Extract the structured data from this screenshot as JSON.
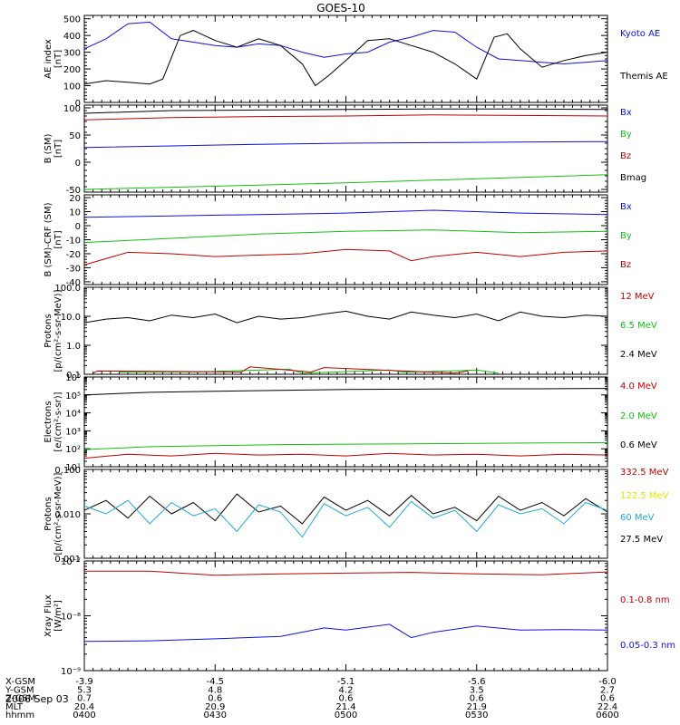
{
  "title": "GOES-10",
  "colors": {
    "black": "#000000",
    "blue": "#1010e0",
    "green": "#10c010",
    "red": "#c00000",
    "yellow": "#f0e000",
    "cyan": "#20a8d8"
  },
  "chart_data": [
    {
      "type": "line",
      "id": "ae",
      "ylabel": [
        "AE index",
        "[nT]"
      ],
      "scale": "linear",
      "ylim": [
        0,
        520
      ],
      "ticks": [
        {
          "v": 0,
          "l": "0"
        },
        {
          "v": 100,
          "l": "100"
        },
        {
          "v": 200,
          "l": "200"
        },
        {
          "v": 300,
          "l": "300"
        },
        {
          "v": 400,
          "l": "400"
        },
        {
          "v": 500,
          "l": "500"
        }
      ],
      "legend": [
        {
          "name": "Kyoto AE",
          "color": "#1010e0"
        },
        {
          "name": "Themis AE",
          "color": "#000000"
        }
      ],
      "series": [
        {
          "name": "Kyoto AE",
          "color": "#1010e0",
          "x": [
            0,
            5,
            10,
            15,
            20,
            25,
            30,
            35,
            40,
            45,
            50,
            55,
            60,
            65,
            70,
            75,
            80,
            85,
            90,
            95,
            100,
            105,
            110,
            115,
            120
          ],
          "y": [
            320,
            380,
            470,
            480,
            380,
            360,
            340,
            330,
            350,
            340,
            300,
            270,
            290,
            300,
            360,
            390,
            430,
            420,
            330,
            260,
            250,
            240,
            230,
            240,
            250
          ]
        },
        {
          "name": "Themis AE",
          "color": "#000000",
          "x": [
            0,
            5,
            10,
            15,
            18,
            22,
            25,
            30,
            35,
            40,
            45,
            50,
            53,
            56,
            60,
            65,
            70,
            75,
            80,
            85,
            90,
            94,
            97,
            100,
            105,
            110,
            115,
            120
          ],
          "y": [
            110,
            130,
            120,
            110,
            140,
            400,
            430,
            370,
            330,
            380,
            340,
            230,
            100,
            160,
            250,
            370,
            380,
            340,
            300,
            230,
            140,
            390,
            410,
            320,
            210,
            250,
            280,
            300
          ]
        }
      ]
    },
    {
      "type": "line",
      "id": "b",
      "ylabel": [
        "B (SM)",
        "[nT]"
      ],
      "scale": "linear",
      "ylim": [
        -55,
        105
      ],
      "ticks": [
        {
          "v": -50,
          "l": "-50"
        },
        {
          "v": 0,
          "l": "0"
        },
        {
          "v": 50,
          "l": "50"
        },
        {
          "v": 100,
          "l": "100"
        }
      ],
      "legend": [
        {
          "name": "Bx",
          "color": "#1010e0"
        },
        {
          "name": "By",
          "color": "#10c010"
        },
        {
          "name": "Bz",
          "color": "#c00000"
        },
        {
          "name": "Bmag",
          "color": "#000000"
        }
      ],
      "series": [
        {
          "name": "Bmag",
          "color": "#000000",
          "x": [
            0,
            20,
            40,
            60,
            80,
            100,
            120
          ],
          "y": [
            90,
            95,
            96,
            97,
            98,
            98,
            97
          ]
        },
        {
          "name": "Bz",
          "color": "#c00000",
          "x": [
            0,
            20,
            40,
            60,
            80,
            100,
            120
          ],
          "y": [
            78,
            82,
            84,
            85,
            87,
            86,
            85
          ]
        },
        {
          "name": "Bx",
          "color": "#1010e0",
          "x": [
            0,
            20,
            40,
            60,
            80,
            100,
            120
          ],
          "y": [
            27,
            30,
            33,
            35,
            36,
            37,
            38
          ]
        },
        {
          "name": "By",
          "color": "#10c010",
          "x": [
            0,
            20,
            40,
            60,
            80,
            100,
            120
          ],
          "y": [
            -50,
            -46,
            -42,
            -38,
            -33,
            -28,
            -23
          ]
        }
      ]
    },
    {
      "type": "line",
      "id": "bresid",
      "ylabel": [
        "B (SM)-CRF (SM)",
        "[nT]"
      ],
      "scale": "linear",
      "ylim": [
        -42,
        22
      ],
      "ticks": [
        {
          "v": -40,
          "l": "-40"
        },
        {
          "v": -30,
          "l": "-30"
        },
        {
          "v": -20,
          "l": "-20"
        },
        {
          "v": -10,
          "l": "-10"
        },
        {
          "v": 0,
          "l": "0"
        },
        {
          "v": 10,
          "l": "10"
        },
        {
          "v": 20,
          "l": "20"
        }
      ],
      "legend": [
        {
          "name": "Bx",
          "color": "#1010e0"
        },
        {
          "name": "By",
          "color": "#10c010"
        },
        {
          "name": "Bz",
          "color": "#c00000"
        }
      ],
      "series": [
        {
          "name": "Bx",
          "color": "#1010e0",
          "x": [
            0,
            20,
            40,
            60,
            80,
            100,
            120
          ],
          "y": [
            6,
            7,
            8,
            9,
            11,
            9,
            8
          ]
        },
        {
          "name": "By",
          "color": "#10c010",
          "x": [
            0,
            20,
            40,
            60,
            80,
            100,
            120
          ],
          "y": [
            -12,
            -9,
            -6,
            -4,
            -3,
            -5,
            -4
          ]
        },
        {
          "name": "Bz",
          "color": "#c00000",
          "x": [
            0,
            10,
            20,
            30,
            40,
            50,
            60,
            70,
            75,
            80,
            90,
            100,
            110,
            120
          ],
          "y": [
            -28,
            -19,
            -20,
            -22,
            -21,
            -20,
            -17,
            -18,
            -25,
            -22,
            -19,
            -22,
            -19,
            -18
          ]
        }
      ]
    },
    {
      "type": "line",
      "id": "protons1",
      "ylabel": [
        "Protons",
        "[p/(cm²-s-sr-MeV)]"
      ],
      "scale": "log",
      "ylim": [
        0.1,
        100
      ],
      "ticks": [
        {
          "v": 0.1,
          "l": "0.1"
        },
        {
          "v": 1,
          "l": "1.0"
        },
        {
          "v": 10,
          "l": "10.0"
        },
        {
          "v": 100,
          "l": "100.0"
        }
      ],
      "legend": [
        {
          "name": "12 MeV",
          "color": "#c00000"
        },
        {
          "name": "6.5 MeV",
          "color": "#10c010"
        },
        {
          "name": "2.4 MeV",
          "color": "#000000"
        }
      ],
      "series": [
        {
          "name": "2.4 MeV",
          "color": "#000000",
          "x": [
            0,
            5,
            10,
            15,
            20,
            25,
            30,
            35,
            40,
            45,
            50,
            55,
            60,
            65,
            70,
            75,
            80,
            85,
            90,
            95,
            100,
            105,
            110,
            115,
            120
          ],
          "y": [
            6,
            8,
            9,
            7,
            11,
            9,
            12,
            6,
            10,
            8,
            9,
            12,
            15,
            10,
            8,
            14,
            11,
            9,
            12,
            7,
            14,
            10,
            9,
            11,
            10
          ]
        },
        {
          "name": "6.5 MeV",
          "color": "#10c010",
          "x": [
            8,
            12,
            18,
            25,
            47,
            50,
            70,
            73,
            76,
            90,
            95
          ],
          "y": [
            0.12,
            0.12,
            0.12,
            0.12,
            0.15,
            0.11,
            0.14,
            0.12,
            0.12,
            0.14,
            0.11
          ]
        },
        {
          "name": "12 MeV",
          "color": "#c00000",
          "x": [
            2,
            3,
            36,
            38,
            52,
            55,
            85,
            88
          ],
          "y": [
            0.11,
            0.13,
            0.12,
            0.18,
            0.12,
            0.17,
            0.11,
            0.13
          ]
        }
      ]
    },
    {
      "type": "line",
      "id": "electrons",
      "ylabel": [
        "Electrons",
        "[e/(cm²-s-sr)]"
      ],
      "scale": "log",
      "ylim": [
        10,
        1000000
      ],
      "ticks": [
        {
          "v": 10,
          "l": "10¹"
        },
        {
          "v": 100,
          "l": "10²"
        },
        {
          "v": 1000,
          "l": "10³"
        },
        {
          "v": 10000,
          "l": "10⁴"
        },
        {
          "v": 100000,
          "l": "10⁵"
        },
        {
          "v": 1000000,
          "l": "10⁶"
        }
      ],
      "legend": [
        {
          "name": "4.0 MeV",
          "color": "#c00000"
        },
        {
          "name": "2.0 MeV",
          "color": "#10c010"
        },
        {
          "name": "0.6 MeV",
          "color": "#000000"
        }
      ],
      "series": [
        {
          "name": "0.6 MeV",
          "color": "#000000",
          "x": [
            0,
            15,
            30,
            45,
            60,
            75,
            90,
            105,
            120
          ],
          "y": [
            100000,
            140000,
            160000,
            180000,
            200000,
            210000,
            220000,
            220000,
            230000
          ]
        },
        {
          "name": "2.0 MeV",
          "color": "#10c010",
          "x": [
            0,
            15,
            30,
            45,
            60,
            75,
            90,
            105,
            120
          ],
          "y": [
            90,
            130,
            150,
            170,
            180,
            190,
            200,
            210,
            220
          ]
        },
        {
          "name": "4.0 MeV",
          "color": "#c00000",
          "x": [
            0,
            10,
            20,
            30,
            40,
            50,
            60,
            70,
            80,
            90,
            100,
            110,
            120
          ],
          "y": [
            30,
            50,
            40,
            55,
            45,
            50,
            40,
            55,
            45,
            50,
            40,
            50,
            45
          ]
        }
      ]
    },
    {
      "type": "line",
      "id": "protons2",
      "ylabel": [
        "Protons",
        "[p/(cm²-s-sr-MeV)]"
      ],
      "scale": "log",
      "ylim": [
        0.001,
        0.1
      ],
      "ticks": [
        {
          "v": 0.001,
          "l": "0.001"
        },
        {
          "v": 0.01,
          "l": "0.010"
        },
        {
          "v": 0.1,
          "l": "0.100"
        }
      ],
      "legend": [
        {
          "name": "332.5 MeV",
          "color": "#c00000"
        },
        {
          "name": "122.5 MeV",
          "color": "#f0e000"
        },
        {
          "name": "60 MeV",
          "color": "#20a8d8"
        },
        {
          "name": "27.5 MeV",
          "color": "#000000"
        }
      ],
      "series": [
        {
          "name": "27.5 MeV",
          "color": "#000000",
          "x": [
            0,
            5,
            10,
            15,
            20,
            25,
            30,
            35,
            40,
            45,
            50,
            55,
            60,
            65,
            70,
            75,
            80,
            85,
            90,
            95,
            100,
            105,
            110,
            115,
            120
          ],
          "y": [
            0.012,
            0.02,
            0.008,
            0.025,
            0.01,
            0.018,
            0.007,
            0.028,
            0.011,
            0.015,
            0.006,
            0.024,
            0.012,
            0.02,
            0.009,
            0.026,
            0.01,
            0.014,
            0.007,
            0.025,
            0.012,
            0.018,
            0.009,
            0.022,
            0.011
          ]
        },
        {
          "name": "60 MeV",
          "color": "#20a8d8",
          "x": [
            0,
            5,
            10,
            15,
            20,
            25,
            30,
            35,
            40,
            45,
            50,
            55,
            60,
            65,
            70,
            75,
            80,
            85,
            90,
            95,
            100,
            105,
            110,
            115,
            120
          ],
          "y": [
            0.015,
            0.01,
            0.02,
            0.006,
            0.018,
            0.009,
            0.013,
            0.004,
            0.016,
            0.011,
            0.003,
            0.017,
            0.009,
            0.014,
            0.005,
            0.019,
            0.008,
            0.012,
            0.004,
            0.016,
            0.01,
            0.013,
            0.006,
            0.018,
            0.012
          ]
        }
      ]
    },
    {
      "type": "line",
      "id": "xray",
      "ylabel": [
        "Xray Flux",
        "[W/m²]"
      ],
      "scale": "log",
      "ylim": [
        1e-09,
        1e-07
      ],
      "ticks": [
        {
          "v": 1e-09,
          "l": "10⁻⁹"
        },
        {
          "v": 1e-08,
          "l": "10⁻⁸"
        },
        {
          "v": 1e-07,
          "l": "10⁻⁷"
        }
      ],
      "legend": [
        {
          "name": "0.1-0.8 nm",
          "color": "#c00000"
        },
        {
          "name": "0.05-0.3 nm",
          "color": "#1010e0"
        }
      ],
      "series": [
        {
          "name": "0.1-0.8 nm",
          "color": "#c00000",
          "x": [
            0,
            15,
            30,
            45,
            60,
            75,
            90,
            105,
            120
          ],
          "y": [
            6.5e-08,
            6.5e-08,
            5.5e-08,
            5.8e-08,
            6e-08,
            6.2e-08,
            5.8e-08,
            5.6e-08,
            6.3e-08
          ]
        },
        {
          "name": "0.05-0.3 nm",
          "color": "#1010e0",
          "x": [
            0,
            15,
            30,
            45,
            55,
            60,
            70,
            75,
            80,
            90,
            100,
            110,
            120
          ],
          "y": [
            3.4e-09,
            3.5e-09,
            3.8e-09,
            4.2e-09,
            6e-09,
            5.5e-09,
            7e-09,
            4e-09,
            5e-09,
            6.5e-09,
            5.5e-09,
            5.6e-09,
            5.5e-09
          ]
        }
      ]
    }
  ],
  "xaxis": {
    "range": [
      0,
      120
    ],
    "major_ticks": [
      0,
      30,
      60,
      90,
      120
    ],
    "rows": [
      {
        "name": "X-GSM",
        "values": [
          "-3.9",
          "-4.5",
          "-5.1",
          "-5.6",
          "-6.0"
        ]
      },
      {
        "name": "Y-GSM",
        "values": [
          "5.3",
          "4.8",
          "4.2",
          "3.5",
          "2.7"
        ]
      },
      {
        "name": "Z-GSM",
        "values": [
          "0.7",
          "0.6",
          "0.6",
          "0.6",
          "0.6"
        ]
      },
      {
        "name": "MLT",
        "values": [
          "20.4",
          "20.9",
          "21.4",
          "21.9",
          "22.4"
        ]
      },
      {
        "name": "hhmm",
        "values": [
          "0400",
          "0430",
          "0500",
          "0530",
          "0600"
        ]
      }
    ],
    "date": "2006 Sep 03"
  }
}
